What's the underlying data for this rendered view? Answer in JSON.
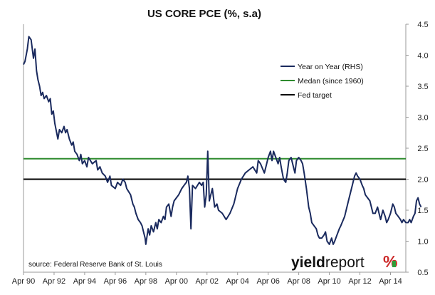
{
  "chart_data": {
    "type": "line",
    "title": "US CORE PCE (%, s.a)",
    "source": "source: Federal Reserve Bank of St. Louis",
    "brand": {
      "yield_text": "yield",
      "report_text": "report",
      "pct_text": "%",
      "colors": {
        "yield": "#111111",
        "report": "#111111",
        "pct_red": "#cc2a2a",
        "pct_green": "#2e9e3a"
      }
    },
    "x_tick_labels": [
      "Apr 90",
      "Apr 92",
      "Apr 94",
      "Apr 96",
      "Apr 98",
      "Apr 00",
      "Apr 02",
      "Apr 04",
      "Apr 06",
      "Apr 08",
      "Apr 10",
      "Apr 12",
      "Apr 14"
    ],
    "x_tick_years": [
      1990.25,
      1992.25,
      1994.25,
      1996.25,
      1998.25,
      2000.25,
      2002.25,
      2004.25,
      2006.25,
      2008.25,
      2010.25,
      2012.25,
      2014.25
    ],
    "xlim": [
      1990.25,
      2015.25
    ],
    "y_tick_labels": [
      "4.5",
      "4.0",
      "3.5",
      "3.0",
      "2.5",
      "2.0",
      "1.5",
      "1.0",
      "0.5"
    ],
    "ylim": [
      0.5,
      4.5
    ],
    "y_axis_side": "right",
    "grid": false,
    "legend": {
      "position": "top-right",
      "entries": [
        {
          "label": "Year on Year (RHS)",
          "color": "#1a2a5e"
        },
        {
          "label": "Medan (since 1960)",
          "color": "#2e8b2e"
        },
        {
          "label": "Fed target",
          "color": "#000000"
        }
      ]
    },
    "series": [
      {
        "name": "Year on Year (RHS)",
        "color": "#1a2a5e",
        "points": [
          [
            1990.25,
            3.85
          ],
          [
            1990.35,
            3.9
          ],
          [
            1990.5,
            4.1
          ],
          [
            1990.6,
            4.3
          ],
          [
            1990.75,
            4.25
          ],
          [
            1990.9,
            3.95
          ],
          [
            1991.0,
            4.1
          ],
          [
            1991.1,
            3.75
          ],
          [
            1991.2,
            3.6
          ],
          [
            1991.3,
            3.5
          ],
          [
            1991.4,
            3.35
          ],
          [
            1991.5,
            3.4
          ],
          [
            1991.6,
            3.3
          ],
          [
            1991.75,
            3.35
          ],
          [
            1991.9,
            3.25
          ],
          [
            1992.0,
            3.3
          ],
          [
            1992.1,
            3.05
          ],
          [
            1992.2,
            3.1
          ],
          [
            1992.3,
            2.9
          ],
          [
            1992.5,
            2.65
          ],
          [
            1992.6,
            2.8
          ],
          [
            1992.75,
            2.75
          ],
          [
            1992.9,
            2.85
          ],
          [
            1993.0,
            2.75
          ],
          [
            1993.1,
            2.8
          ],
          [
            1993.25,
            2.65
          ],
          [
            1993.4,
            2.55
          ],
          [
            1993.5,
            2.6
          ],
          [
            1993.6,
            2.45
          ],
          [
            1993.75,
            2.4
          ],
          [
            1993.9,
            2.3
          ],
          [
            1994.0,
            2.4
          ],
          [
            1994.1,
            2.25
          ],
          [
            1994.25,
            2.3
          ],
          [
            1994.4,
            2.2
          ],
          [
            1994.5,
            2.35
          ],
          [
            1994.75,
            2.25
          ],
          [
            1995.0,
            2.3
          ],
          [
            1995.1,
            2.15
          ],
          [
            1995.25,
            2.2
          ],
          [
            1995.4,
            2.1
          ],
          [
            1995.6,
            2.05
          ],
          [
            1995.75,
            1.95
          ],
          [
            1995.9,
            2.05
          ],
          [
            1996.0,
            1.9
          ],
          [
            1996.25,
            1.85
          ],
          [
            1996.4,
            1.95
          ],
          [
            1996.6,
            1.9
          ],
          [
            1996.75,
            2.0
          ],
          [
            1996.9,
            1.95
          ],
          [
            1997.0,
            1.85
          ],
          [
            1997.25,
            1.75
          ],
          [
            1997.4,
            1.6
          ],
          [
            1997.5,
            1.55
          ],
          [
            1997.6,
            1.45
          ],
          [
            1997.75,
            1.35
          ],
          [
            1997.9,
            1.3
          ],
          [
            1998.0,
            1.25
          ],
          [
            1998.1,
            1.15
          ],
          [
            1998.2,
            1.05
          ],
          [
            1998.25,
            0.95
          ],
          [
            1998.4,
            1.2
          ],
          [
            1998.5,
            1.1
          ],
          [
            1998.6,
            1.25
          ],
          [
            1998.75,
            1.15
          ],
          [
            1998.9,
            1.3
          ],
          [
            1999.0,
            1.2
          ],
          [
            1999.1,
            1.35
          ],
          [
            1999.25,
            1.3
          ],
          [
            1999.4,
            1.4
          ],
          [
            1999.5,
            1.35
          ],
          [
            1999.6,
            1.55
          ],
          [
            1999.75,
            1.6
          ],
          [
            1999.9,
            1.4
          ],
          [
            2000.0,
            1.55
          ],
          [
            2000.1,
            1.65
          ],
          [
            2000.25,
            1.7
          ],
          [
            2000.4,
            1.75
          ],
          [
            2000.6,
            1.85
          ],
          [
            2000.75,
            1.9
          ],
          [
            2000.9,
            1.95
          ],
          [
            2001.0,
            2.05
          ],
          [
            2001.1,
            1.85
          ],
          [
            2001.2,
            1.2
          ],
          [
            2001.3,
            1.9
          ],
          [
            2001.5,
            1.85
          ],
          [
            2001.75,
            1.95
          ],
          [
            2001.9,
            1.9
          ],
          [
            2002.0,
            1.95
          ],
          [
            2002.1,
            1.55
          ],
          [
            2002.2,
            1.75
          ],
          [
            2002.3,
            2.45
          ],
          [
            2002.4,
            1.65
          ],
          [
            2002.5,
            1.75
          ],
          [
            2002.6,
            1.85
          ],
          [
            2002.75,
            1.55
          ],
          [
            2002.9,
            1.6
          ],
          [
            2003.0,
            1.5
          ],
          [
            2003.25,
            1.45
          ],
          [
            2003.5,
            1.35
          ],
          [
            2003.75,
            1.45
          ],
          [
            2004.0,
            1.6
          ],
          [
            2004.25,
            1.85
          ],
          [
            2004.5,
            2.0
          ],
          [
            2004.75,
            2.1
          ],
          [
            2005.0,
            2.15
          ],
          [
            2005.25,
            2.2
          ],
          [
            2005.5,
            2.1
          ],
          [
            2005.6,
            2.3
          ],
          [
            2005.75,
            2.25
          ],
          [
            2006.0,
            2.1
          ],
          [
            2006.1,
            2.2
          ],
          [
            2006.25,
            2.35
          ],
          [
            2006.4,
            2.45
          ],
          [
            2006.5,
            2.3
          ],
          [
            2006.6,
            2.45
          ],
          [
            2006.75,
            2.35
          ],
          [
            2006.9,
            2.25
          ],
          [
            2007.0,
            2.35
          ],
          [
            2007.1,
            2.2
          ],
          [
            2007.25,
            2.0
          ],
          [
            2007.4,
            1.95
          ],
          [
            2007.5,
            2.1
          ],
          [
            2007.6,
            2.3
          ],
          [
            2007.75,
            2.35
          ],
          [
            2007.9,
            2.2
          ],
          [
            2008.0,
            2.1
          ],
          [
            2008.1,
            2.3
          ],
          [
            2008.25,
            2.35
          ],
          [
            2008.4,
            2.3
          ],
          [
            2008.5,
            2.25
          ],
          [
            2008.6,
            2.1
          ],
          [
            2008.75,
            1.85
          ],
          [
            2008.9,
            1.55
          ],
          [
            2009.0,
            1.45
          ],
          [
            2009.1,
            1.3
          ],
          [
            2009.25,
            1.25
          ],
          [
            2009.4,
            1.2
          ],
          [
            2009.5,
            1.1
          ],
          [
            2009.6,
            1.05
          ],
          [
            2009.75,
            1.05
          ],
          [
            2009.9,
            1.1
          ],
          [
            2010.0,
            1.15
          ],
          [
            2010.1,
            1.0
          ],
          [
            2010.25,
            0.95
          ],
          [
            2010.4,
            1.05
          ],
          [
            2010.5,
            0.95
          ],
          [
            2010.6,
            1.0
          ],
          [
            2010.75,
            1.1
          ],
          [
            2010.9,
            1.2
          ],
          [
            2011.0,
            1.25
          ],
          [
            2011.25,
            1.4
          ],
          [
            2011.5,
            1.65
          ],
          [
            2011.75,
            1.9
          ],
          [
            2011.9,
            2.05
          ],
          [
            2012.0,
            2.1
          ],
          [
            2012.1,
            2.05
          ],
          [
            2012.25,
            2.0
          ],
          [
            2012.4,
            1.9
          ],
          [
            2012.5,
            1.85
          ],
          [
            2012.6,
            1.75
          ],
          [
            2012.75,
            1.7
          ],
          [
            2012.9,
            1.65
          ],
          [
            2013.0,
            1.55
          ],
          [
            2013.1,
            1.45
          ],
          [
            2013.25,
            1.45
          ],
          [
            2013.4,
            1.55
          ],
          [
            2013.5,
            1.45
          ],
          [
            2013.6,
            1.35
          ],
          [
            2013.75,
            1.5
          ],
          [
            2013.9,
            1.4
          ],
          [
            2014.0,
            1.3
          ],
          [
            2014.1,
            1.35
          ],
          [
            2014.25,
            1.45
          ],
          [
            2014.4,
            1.6
          ],
          [
            2014.5,
            1.55
          ],
          [
            2014.6,
            1.45
          ],
          [
            2014.75,
            1.4
          ],
          [
            2014.9,
            1.35
          ],
          [
            2015.0,
            1.3
          ],
          [
            2015.1,
            1.35
          ],
          [
            2015.25,
            1.3
          ],
          [
            2015.4,
            1.3
          ],
          [
            2015.5,
            1.35
          ],
          [
            2015.6,
            1.3
          ],
          [
            2015.75,
            1.4
          ],
          [
            2015.85,
            1.45
          ],
          [
            2015.95,
            1.65
          ],
          [
            2016.05,
            1.7
          ],
          [
            2016.15,
            1.6
          ],
          [
            2016.25,
            1.55
          ]
        ]
      }
    ],
    "hlines": [
      {
        "name": "Medan (since 1960)",
        "value": 2.33,
        "color": "#2e8b2e"
      },
      {
        "name": "Fed target",
        "value": 2.0,
        "color": "#000000"
      }
    ]
  }
}
